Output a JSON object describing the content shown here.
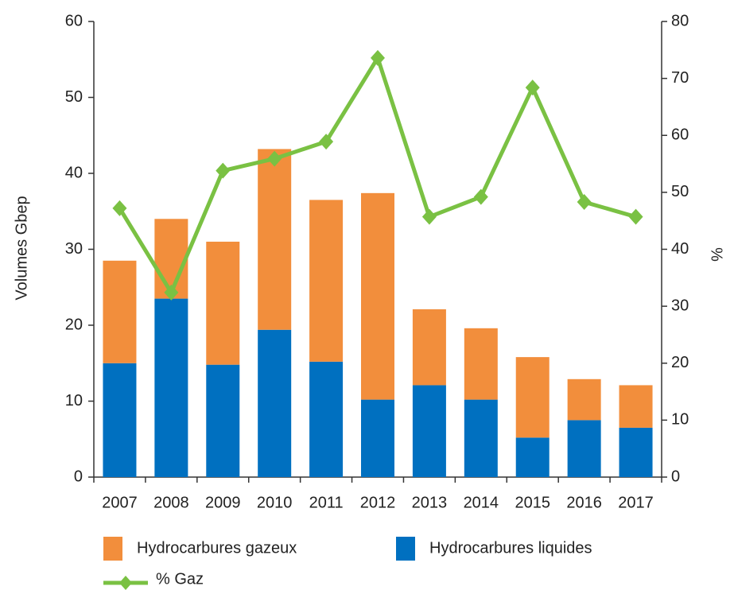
{
  "chart_data": {
    "type": "bar_line",
    "categories": [
      "2007",
      "2008",
      "2009",
      "2010",
      "2011",
      "2012",
      "2013",
      "2014",
      "2015",
      "2016",
      "2017"
    ],
    "ylabel": "Volumes Gbep",
    "y2label": "%",
    "ylim": [
      0,
      60
    ],
    "yticks": [
      0,
      10,
      20,
      30,
      40,
      50,
      60
    ],
    "y2lim": [
      0,
      80
    ],
    "y2ticks": [
      0,
      10,
      20,
      30,
      40,
      50,
      60,
      70,
      80
    ],
    "stacked": true,
    "series": [
      {
        "name": "Hydrocarbures liquides",
        "color": "#0070c0",
        "kind": "bar",
        "values": [
          15,
          23.5,
          14.8,
          19.4,
          15.2,
          10.2,
          12.1,
          10.2,
          5.2,
          7.5,
          6.5
        ]
      },
      {
        "name": "Hydrocarbures gazeux",
        "color": "#f28e3c",
        "kind": "bar",
        "values": [
          13.5,
          10.5,
          16.2,
          23.8,
          21.3,
          27.2,
          10,
          9.4,
          10.6,
          5.4,
          5.6
        ]
      },
      {
        "name": "% Gaz",
        "color": "#7ac143",
        "kind": "line",
        "axis": "y2",
        "values": [
          47.2,
          32.4,
          53.8,
          55.9,
          58.9,
          73.6,
          45.7,
          49.2,
          68.4,
          48.3,
          45.7
        ]
      }
    ]
  }
}
